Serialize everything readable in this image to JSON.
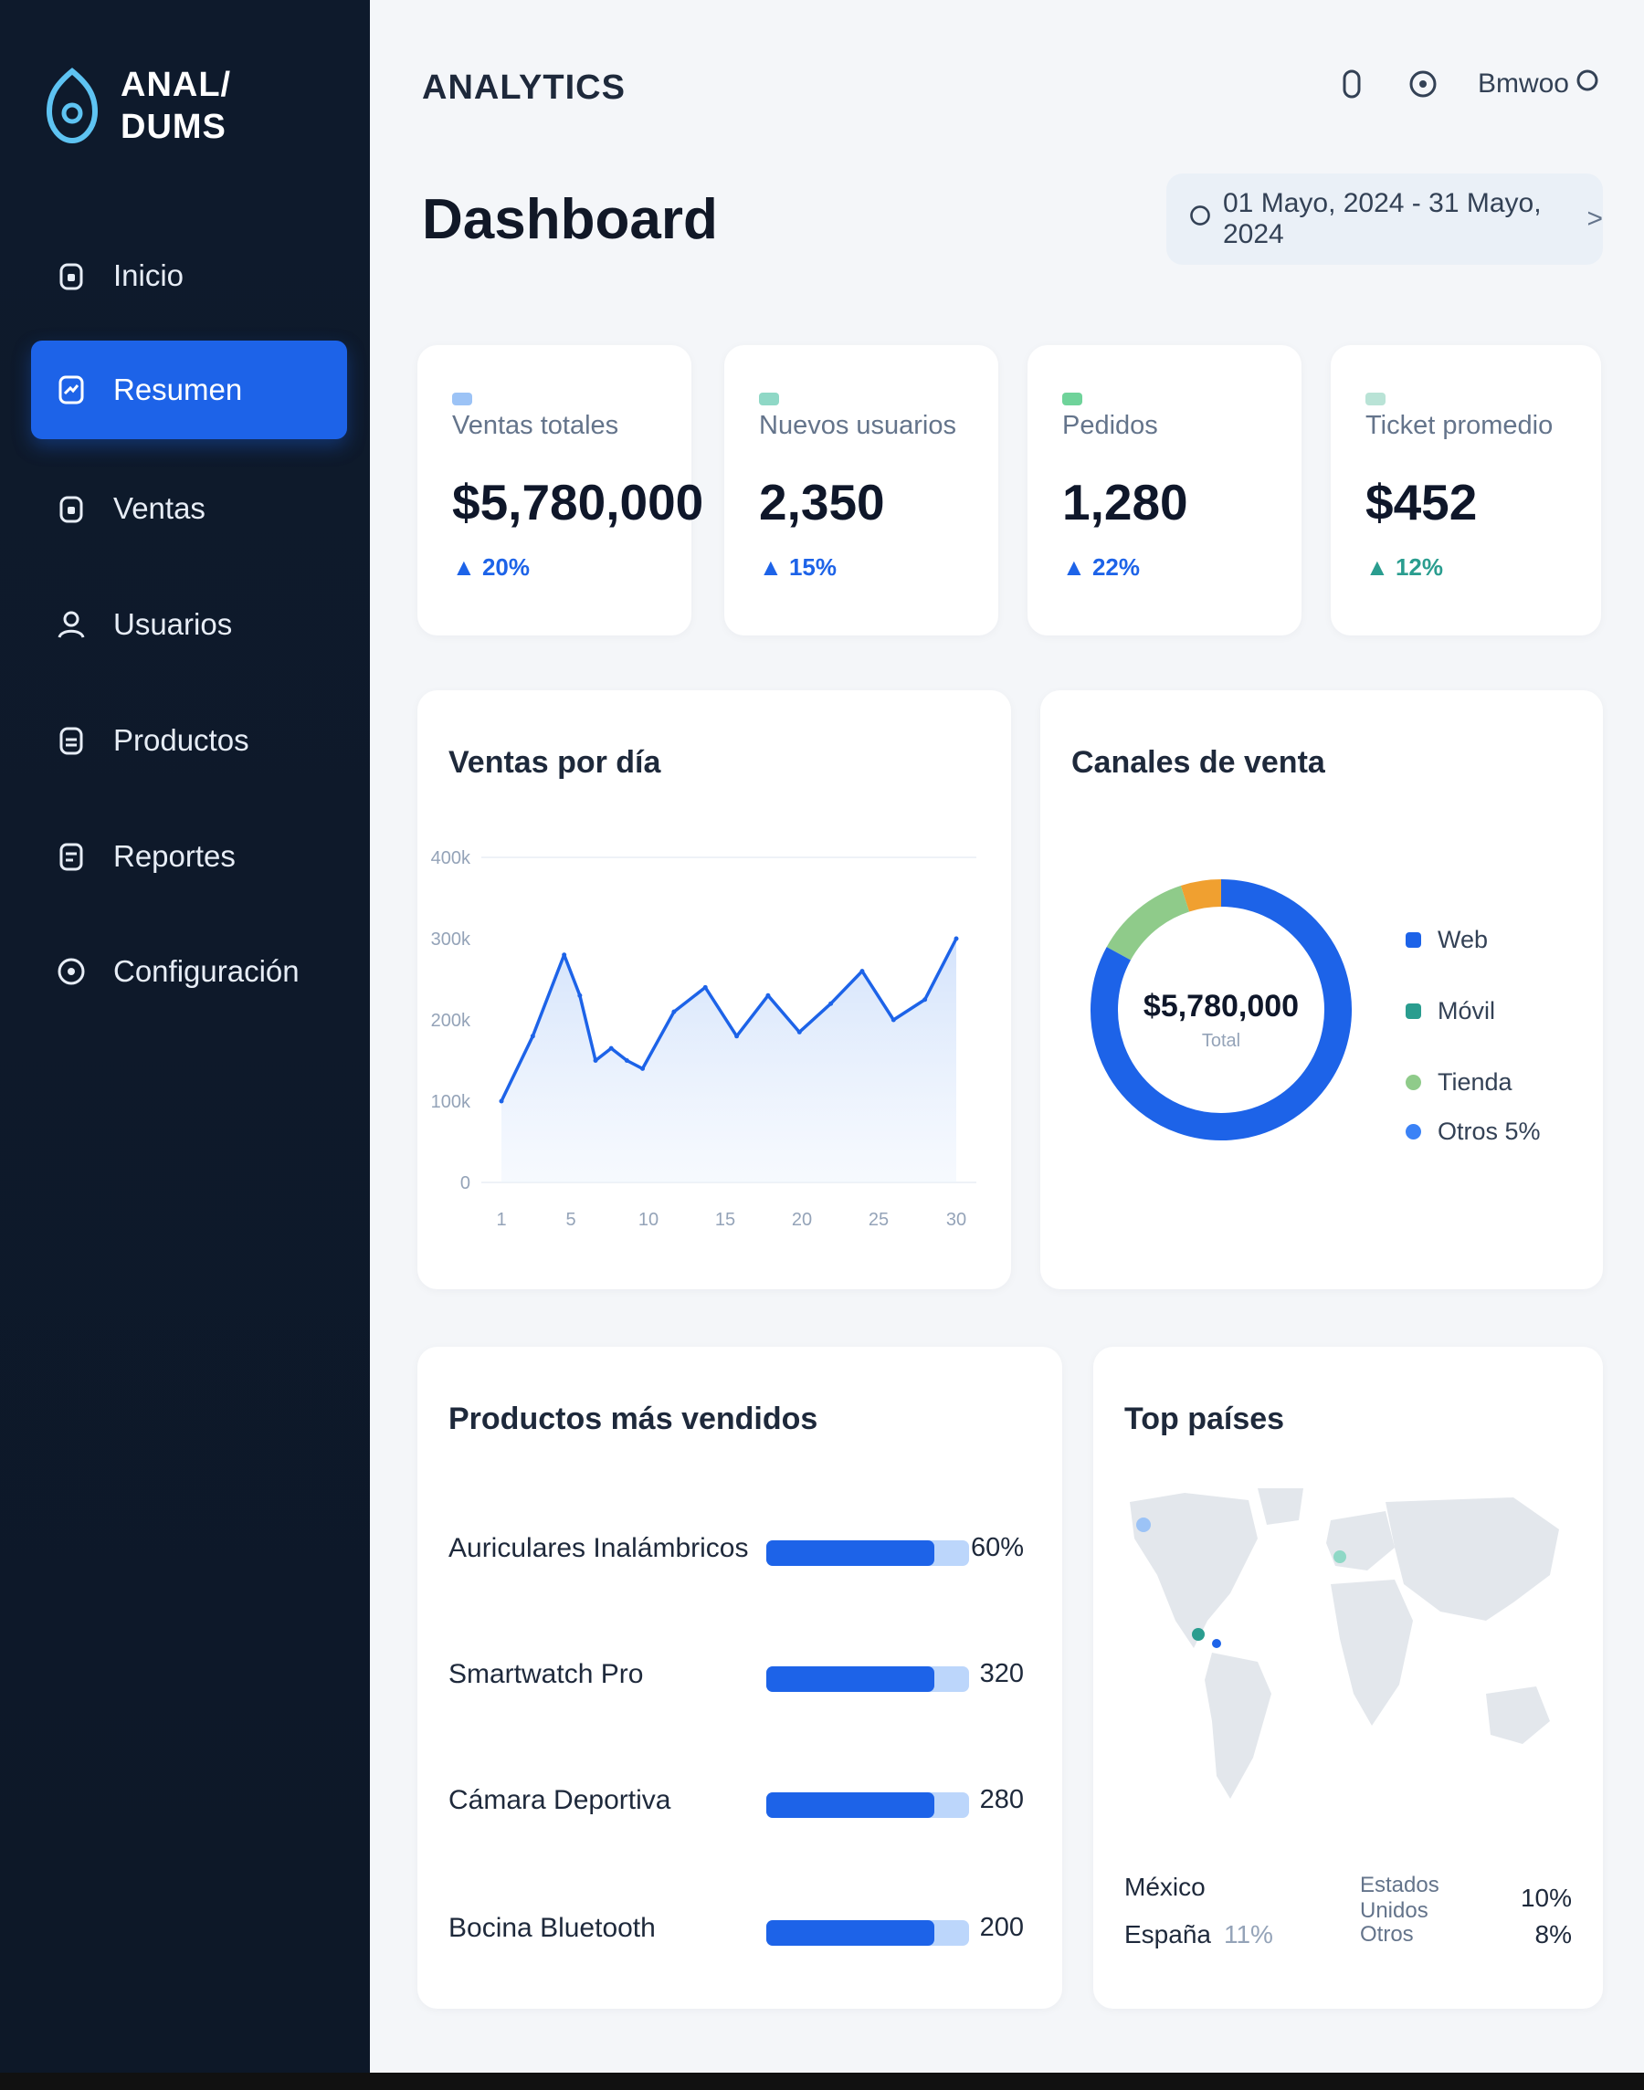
{
  "brand": {
    "line1": "ANAL/",
    "line2": "DUMS"
  },
  "app": {
    "title": "ANALYTICS"
  },
  "topbar": {
    "user_label": "Bmwoo"
  },
  "page": {
    "title": "Dashboard",
    "date_range": "01 Mayo, 2024 - 31 Mayo, 2024",
    "date_range_arrow": ">"
  },
  "sidebar": {
    "items": [
      {
        "label": "Inicio",
        "icon": "home-icon",
        "active": false
      },
      {
        "label": "Resumen",
        "icon": "summary-icon",
        "active": true
      },
      {
        "label": "Ventas",
        "icon": "sales-icon",
        "active": false
      },
      {
        "label": "Usuarios",
        "icon": "users-icon",
        "active": false
      },
      {
        "label": "Productos",
        "icon": "products-icon",
        "active": false
      },
      {
        "label": "Reportes",
        "icon": "reports-icon",
        "active": false
      },
      {
        "label": "Configuración",
        "icon": "settings-icon",
        "active": false
      }
    ]
  },
  "kpis": [
    {
      "label": "Ventas totales",
      "value": "$5,780,000",
      "change": "▲ 20%",
      "color": "#1d63e8"
    },
    {
      "label": "Nuevos usuarios",
      "value": "2,350",
      "change": "▲ 15%",
      "color": "#1d63e8"
    },
    {
      "label": "Pedidos",
      "value": "1,280",
      "change": "▲ 22%",
      "color": "#1d63e8"
    },
    {
      "label": "Ticket promedio",
      "value": "$452",
      "change": "▲ 12%",
      "color": "#2a9d8f"
    }
  ],
  "sales_chart": {
    "title": "Ventas por día",
    "y_ticks": [
      "400k",
      "300k",
      "200k",
      "100k",
      "0"
    ],
    "x_ticks": [
      "1",
      "5",
      "10",
      "15",
      "20",
      "25",
      "30"
    ]
  },
  "channels": {
    "title": "Canales de venta",
    "center_value": "$5,780,000",
    "center_label": "Total",
    "legend": [
      {
        "label": "Web",
        "color": "#1d63e8"
      },
      {
        "label": "Móvil",
        "color": "#2a9d8f"
      },
      {
        "label": "Tienda",
        "color": "#8fcb8a"
      },
      {
        "label": "Otros 5%",
        "color": "#3b82f6"
      }
    ]
  },
  "products": {
    "title": "Productos más vendidos",
    "items": [
      {
        "name": "Auriculares Inalámbricos",
        "value": "60%",
        "fill": 0.83
      },
      {
        "name": "Smartwatch Pro",
        "value": "320",
        "fill": 0.83
      },
      {
        "name": "Cámara Deportiva",
        "value": "280",
        "fill": 0.83
      },
      {
        "name": "Bocina Bluetooth",
        "value": "200",
        "fill": 0.83
      }
    ]
  },
  "countries": {
    "title": "Top países",
    "items": [
      {
        "name": "México",
        "value": ""
      },
      {
        "name": "España",
        "value": "11%"
      },
      {
        "name": "Estados Unidos",
        "value": "10%"
      },
      {
        "name": "Otros",
        "value": "8%"
      }
    ]
  },
  "chart_data": [
    {
      "type": "area",
      "title": "Ventas por día",
      "xlabel": "",
      "ylabel": "",
      "ylim": [
        0,
        400000
      ],
      "x": [
        1,
        3,
        5,
        6,
        7,
        8,
        9,
        10,
        12,
        14,
        16,
        18,
        20,
        22,
        24,
        26,
        28,
        30
      ],
      "series": [
        {
          "values": [
            100000,
            180000,
            280000,
            230000,
            150000,
            165000,
            150000,
            140000,
            210000,
            240000,
            180000,
            230000,
            185000,
            220000,
            260000,
            200000,
            225000,
            300000
          ]
        }
      ]
    },
    {
      "type": "pie",
      "title": "Canales de venta",
      "categories": [
        "Web",
        "Móvil",
        "Tienda",
        "Otros"
      ],
      "values": [
        83,
        0,
        12,
        5
      ],
      "colors": [
        "#1d63e8",
        "#2a9d8f",
        "#8fcb8a",
        "#f0a030"
      ]
    }
  ]
}
